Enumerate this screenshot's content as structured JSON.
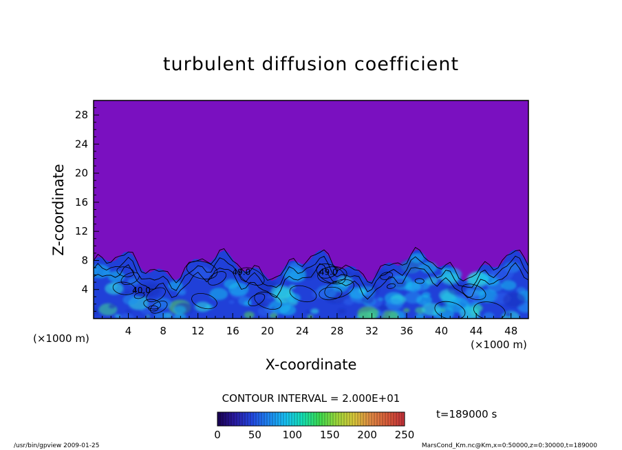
{
  "chart_data": {
    "type": "heatmap",
    "title": "turbulent diffusion coefficient",
    "xlabel": "X-coordinate",
    "ylabel": "Z-coordinate",
    "x_unit": "(×1000 m)",
    "y_unit": "(×1000 m)",
    "xlim": [
      0,
      50
    ],
    "ylim": [
      0,
      30
    ],
    "x_ticks": [
      4,
      8,
      12,
      16,
      20,
      24,
      28,
      32,
      36,
      40,
      44,
      48
    ],
    "y_ticks": [
      4,
      8,
      12,
      16,
      20,
      24,
      28
    ],
    "contour_interval": "CONTOUR INTERVAL = 2.000E+01",
    "contour_labels": [
      {
        "text": "49.0",
        "x": 17.0,
        "z": 6.0
      },
      {
        "text": "40.0",
        "x": 5.5,
        "z": 3.5
      },
      {
        "text": "49.0",
        "x": 27.0,
        "z": 6.0
      }
    ],
    "time_label": "t=189000  s",
    "colorbar": {
      "ticks": [
        0,
        50,
        100,
        150,
        200,
        250
      ],
      "range": [
        0,
        250
      ],
      "colors": [
        "#180050",
        "#2a1aa0",
        "#2246e0",
        "#1f86f2",
        "#17c0f2",
        "#14e0b4",
        "#3cdc50",
        "#9cd83c",
        "#d8c83a",
        "#e08a44",
        "#d85a3a",
        "#c2303a"
      ]
    },
    "background_color": "#7a10c0",
    "turbulent_layer_top_km": 8.5,
    "footer_left": "/usr/bin/gpview   2009-01-25",
    "footer_right": "MarsCond_Km.nc@Km,x=0:50000,z=0:30000,t=189000"
  }
}
